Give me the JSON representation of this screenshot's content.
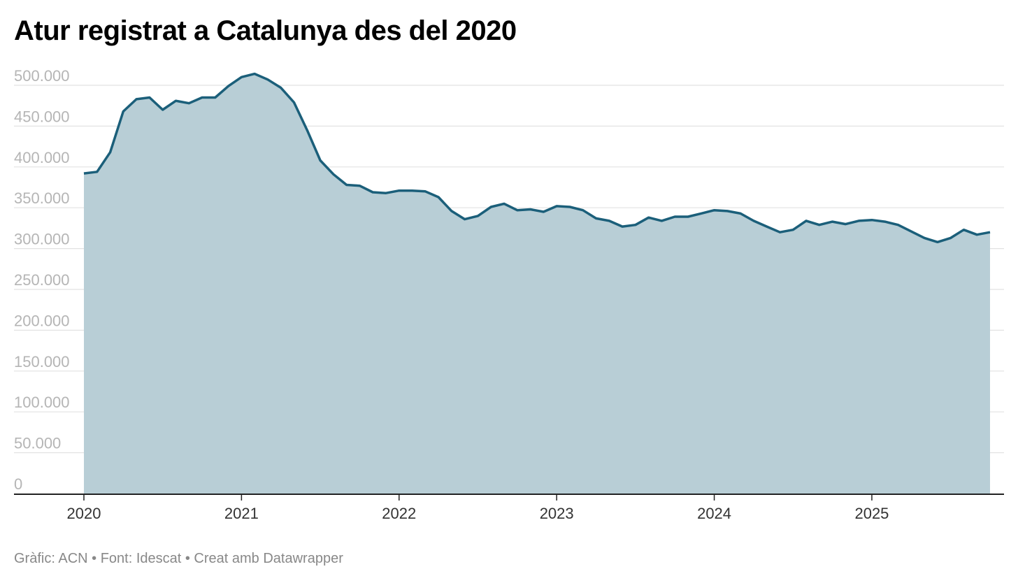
{
  "header": {
    "title": "Atur registrat a Catalunya des del 2020"
  },
  "footer": {
    "text": "Gràfic: ACN • Font: Idescat • Creat amb Datawrapper"
  },
  "chart_data": {
    "type": "area",
    "title": "Atur registrat a Catalunya des del 2020",
    "xlabel": "",
    "ylabel": "",
    "ylim": [
      0,
      500000
    ],
    "grid": true,
    "legend": "none",
    "colors": {
      "line": "#1b5f7a",
      "fill": "#b8ced6",
      "grid": "#e2e2e2",
      "axis": "#222222"
    },
    "yticks": [
      0,
      50000,
      100000,
      150000,
      200000,
      250000,
      300000,
      350000,
      400000,
      450000,
      500000
    ],
    "ytick_labels": [
      "0",
      "50.000",
      "100.000",
      "150.000",
      "200.000",
      "250.000",
      "300.000",
      "350.000",
      "400.000",
      "450.000",
      "500.000"
    ],
    "xticks": [
      "2020",
      "2021",
      "2022",
      "2023",
      "2024",
      "2025"
    ],
    "series": [
      {
        "x": [
          "2020-01",
          "2020-02",
          "2020-03",
          "2020-04",
          "2020-05",
          "2020-06",
          "2020-07",
          "2020-08",
          "2020-09",
          "2020-10",
          "2020-11",
          "2020-12",
          "2021-01",
          "2021-02",
          "2021-03",
          "2021-04",
          "2021-05",
          "2021-06",
          "2021-07",
          "2021-08",
          "2021-09",
          "2021-10",
          "2021-11",
          "2021-12",
          "2022-01",
          "2022-02",
          "2022-03",
          "2022-04",
          "2022-05",
          "2022-06",
          "2022-07",
          "2022-08",
          "2022-09",
          "2022-10",
          "2022-11",
          "2022-12",
          "2023-01",
          "2023-02",
          "2023-03",
          "2023-04",
          "2023-05",
          "2023-06",
          "2023-07",
          "2023-08",
          "2023-09",
          "2023-10",
          "2023-11",
          "2023-12",
          "2024-01",
          "2024-02",
          "2024-03",
          "2024-04",
          "2024-05",
          "2024-06",
          "2024-07",
          "2024-08",
          "2024-09",
          "2024-10",
          "2024-11",
          "2024-12",
          "2025-01",
          "2025-02",
          "2025-03",
          "2025-04",
          "2025-05",
          "2025-06",
          "2025-07",
          "2025-08",
          "2025-09",
          "2025-10"
        ],
        "values": [
          392000,
          394000,
          418000,
          468000,
          483000,
          485000,
          470000,
          481000,
          478000,
          485000,
          485000,
          499000,
          510000,
          514000,
          507000,
          497000,
          479000,
          445000,
          408000,
          391000,
          378000,
          377000,
          369000,
          368000,
          371000,
          371000,
          370000,
          363000,
          346000,
          336000,
          340000,
          351000,
          355000,
          347000,
          348000,
          345000,
          352000,
          351000,
          347000,
          337000,
          334000,
          327000,
          329000,
          338000,
          334000,
          339000,
          339000,
          343000,
          347000,
          346000,
          343000,
          334000,
          327000,
          320000,
          323000,
          334000,
          329000,
          333000,
          330000,
          334000,
          335000,
          333000,
          329000,
          321000,
          313000,
          308000,
          313000,
          323000,
          317000,
          320000
        ]
      }
    ]
  }
}
